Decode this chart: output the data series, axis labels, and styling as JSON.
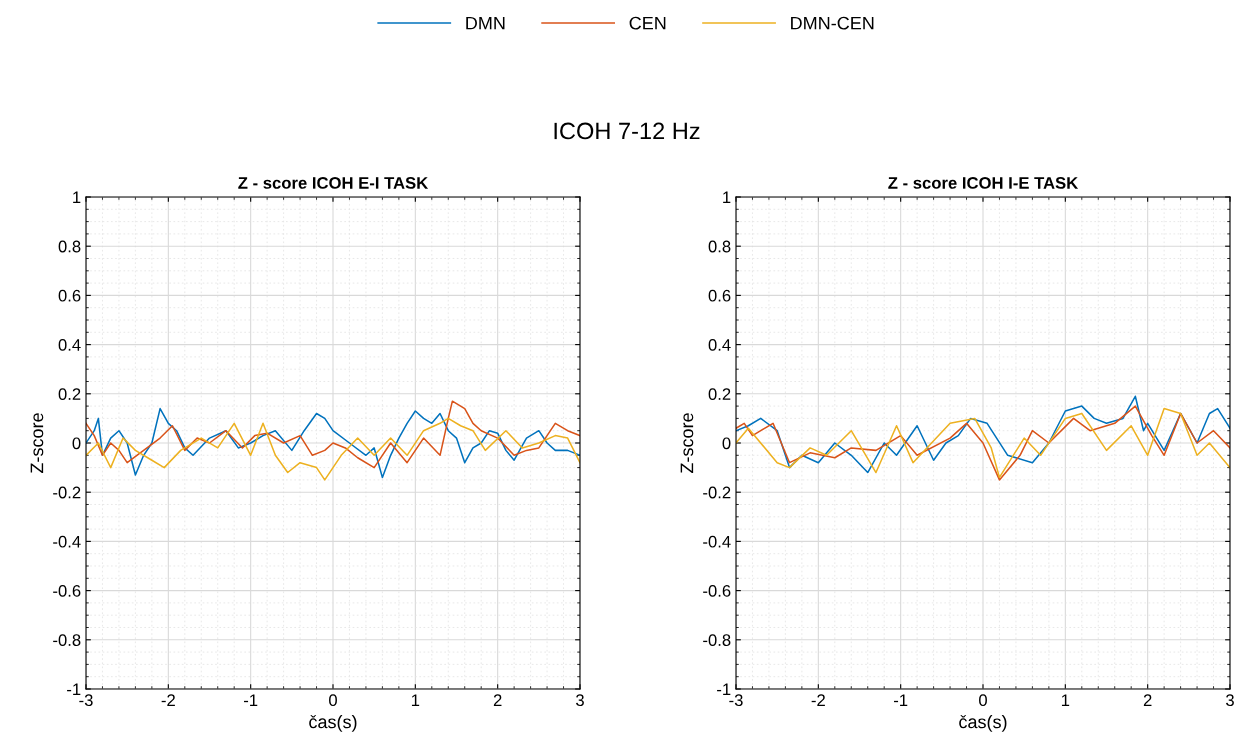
{
  "chart_data": [
    {
      "type": "line",
      "title": "Z - score ICOH E-I TASK",
      "xlabel": "čas(s)",
      "ylabel": "Z-score",
      "annotations": [
        "ICOH 7-12 Hz"
      ],
      "legend": "top",
      "grid": true,
      "xlim": [
        -3,
        3
      ],
      "ylim": [
        -1,
        1
      ],
      "xticks": [
        -3,
        -2,
        -1,
        0,
        1,
        2,
        3
      ],
      "yticks": [
        -1,
        -0.8,
        -0.6,
        -0.4,
        -0.2,
        0,
        0.2,
        0.4,
        0.6,
        0.8,
        1
      ],
      "series": [
        {
          "name": "DMN",
          "color": "#0072bd",
          "x": [
            -3,
            -2.9,
            -2.85,
            -2.8,
            -2.7,
            -2.6,
            -2.5,
            -2.4,
            -2.3,
            -2.2,
            -2.1,
            -2.0,
            -1.9,
            -1.8,
            -1.7,
            -1.5,
            -1.3,
            -1.15,
            -1.0,
            -0.85,
            -0.7,
            -0.5,
            -0.35,
            -0.2,
            -0.1,
            0,
            0.2,
            0.4,
            0.5,
            0.6,
            0.7,
            0.8,
            0.9,
            1.0,
            1.1,
            1.2,
            1.3,
            1.4,
            1.5,
            1.6,
            1.7,
            1.8,
            1.9,
            2.0,
            2.1,
            2.2,
            2.35,
            2.5,
            2.6,
            2.7,
            2.85,
            3
          ],
          "values": [
            0,
            0.05,
            0.1,
            -0.05,
            0.02,
            0.05,
            0,
            -0.13,
            -0.05,
            0,
            0.14,
            0.08,
            0.05,
            -0.02,
            -0.05,
            0.02,
            0.05,
            -0.02,
            0,
            0.03,
            0.05,
            -0.03,
            0.05,
            0.12,
            0.1,
            0.05,
            0,
            -0.05,
            -0.02,
            -0.14,
            -0.05,
            0.02,
            0.08,
            0.13,
            0.1,
            0.08,
            0.12,
            0.05,
            0.02,
            -0.08,
            -0.02,
            0,
            0.05,
            0.04,
            -0.03,
            -0.07,
            0.02,
            0.05,
            0,
            -0.03,
            -0.03,
            -0.05
          ]
        },
        {
          "name": "CEN",
          "color": "#d95319",
          "x": [
            -3,
            -2.9,
            -2.8,
            -2.7,
            -2.6,
            -2.5,
            -2.3,
            -2.1,
            -1.95,
            -1.8,
            -1.65,
            -1.5,
            -1.3,
            -1.1,
            -0.95,
            -0.8,
            -0.6,
            -0.4,
            -0.25,
            -0.1,
            0,
            0.15,
            0.3,
            0.5,
            0.7,
            0.9,
            1.1,
            1.3,
            1.4,
            1.45,
            1.55,
            1.6,
            1.7,
            1.8,
            2.0,
            2.2,
            2.35,
            2.5,
            2.6,
            2.7,
            2.85,
            3
          ],
          "values": [
            0.08,
            0.03,
            -0.05,
            0,
            -0.03,
            -0.08,
            -0.03,
            0.02,
            0.07,
            -0.03,
            0.02,
            0,
            0.05,
            -0.02,
            0.03,
            0.04,
            0,
            0.03,
            -0.05,
            -0.03,
            0,
            -0.02,
            -0.06,
            -0.1,
            0,
            -0.08,
            0.02,
            -0.05,
            0.1,
            0.17,
            0.15,
            0.14,
            0.08,
            0.05,
            0.02,
            -0.05,
            -0.03,
            -0.02,
            0.03,
            0.08,
            0.05,
            0.03
          ]
        },
        {
          "name": "DMN-CEN",
          "color": "#edb120",
          "x": [
            -3,
            -2.85,
            -2.7,
            -2.55,
            -2.4,
            -2.2,
            -2.05,
            -1.85,
            -1.6,
            -1.4,
            -1.2,
            -1.0,
            -0.85,
            -0.7,
            -0.55,
            -0.4,
            -0.2,
            -0.1,
            0.1,
            0.3,
            0.5,
            0.7,
            0.9,
            1.1,
            1.3,
            1.4,
            1.55,
            1.7,
            1.85,
            2.1,
            2.3,
            2.5,
            2.7,
            2.85,
            3
          ],
          "values": [
            -0.05,
            0,
            -0.1,
            0.02,
            -0.03,
            -0.07,
            -0.1,
            -0.03,
            0.02,
            -0.02,
            0.08,
            -0.05,
            0.08,
            -0.05,
            -0.12,
            -0.08,
            -0.1,
            -0.15,
            -0.05,
            0.02,
            -0.05,
            0.02,
            -0.05,
            0.05,
            0.08,
            0.1,
            0.07,
            0.05,
            -0.03,
            0.05,
            -0.02,
            0,
            0.03,
            0.02,
            -0.08
          ]
        }
      ]
    },
    {
      "type": "line",
      "title": "Z - score ICOH I-E TASK",
      "xlabel": "čas(s)",
      "ylabel": "Z-score",
      "legend": "top",
      "grid": true,
      "xlim": [
        -3,
        3
      ],
      "ylim": [
        -1,
        1
      ],
      "xticks": [
        -3,
        -2,
        -1,
        0,
        1,
        2,
        3
      ],
      "yticks": [
        -1,
        -0.8,
        -0.6,
        -0.4,
        -0.2,
        0,
        0.2,
        0.4,
        0.6,
        0.8,
        1
      ],
      "series": [
        {
          "name": "DMN",
          "color": "#0072bd",
          "x": [
            -3,
            -2.85,
            -2.7,
            -2.5,
            -2.35,
            -2.2,
            -2.0,
            -1.8,
            -1.6,
            -1.4,
            -1.2,
            -1.05,
            -0.8,
            -0.6,
            -0.45,
            -0.3,
            -0.15,
            0.05,
            0.3,
            0.6,
            0.8,
            1.0,
            1.2,
            1.35,
            1.5,
            1.7,
            1.85,
            1.95,
            2.0,
            2.2,
            2.4,
            2.6,
            2.75,
            2.85,
            3
          ],
          "values": [
            0.05,
            0.07,
            0.1,
            0.05,
            -0.1,
            -0.05,
            -0.08,
            0,
            -0.05,
            -0.12,
            0,
            -0.05,
            0.07,
            -0.07,
            0,
            0.03,
            0.1,
            0.08,
            -0.05,
            -0.08,
            0,
            0.13,
            0.15,
            0.1,
            0.08,
            0.1,
            0.19,
            0.05,
            0.08,
            -0.03,
            0.12,
            0,
            0.12,
            0.14,
            0.06
          ]
        },
        {
          "name": "CEN",
          "color": "#d95319",
          "x": [
            -3,
            -2.9,
            -2.8,
            -2.55,
            -2.35,
            -2.1,
            -1.8,
            -1.6,
            -1.3,
            -1.0,
            -0.8,
            -0.4,
            -0.2,
            0,
            0.2,
            0.45,
            0.6,
            0.8,
            1.1,
            1.3,
            1.6,
            1.85,
            2.05,
            2.2,
            2.4,
            2.6,
            2.8,
            3
          ],
          "values": [
            0.06,
            0.08,
            0.03,
            0.08,
            -0.08,
            -0.04,
            -0.06,
            -0.02,
            -0.03,
            0.03,
            -0.05,
            0.02,
            0.08,
            0,
            -0.15,
            -0.05,
            0.05,
            0,
            0.1,
            0.05,
            0.08,
            0.15,
            0.03,
            -0.05,
            0.12,
            0,
            0.05,
            -0.02
          ]
        },
        {
          "name": "DMN-CEN",
          "color": "#edb120",
          "x": [
            -3,
            -2.85,
            -2.5,
            -2.35,
            -2.1,
            -1.9,
            -1.6,
            -1.3,
            -1.05,
            -0.85,
            -0.4,
            -0.1,
            0.1,
            0.2,
            0.5,
            0.7,
            1.0,
            1.2,
            1.5,
            1.8,
            2.0,
            2.2,
            2.4,
            2.6,
            2.75,
            3
          ],
          "values": [
            0,
            0.06,
            -0.08,
            -0.1,
            -0.02,
            -0.05,
            0.05,
            -0.12,
            0.07,
            -0.08,
            0.08,
            0.1,
            -0.02,
            -0.14,
            0.02,
            -0.05,
            0.1,
            0.12,
            -0.03,
            0.07,
            -0.05,
            0.14,
            0.12,
            -0.05,
            0,
            -0.1
          ]
        }
      ]
    }
  ]
}
